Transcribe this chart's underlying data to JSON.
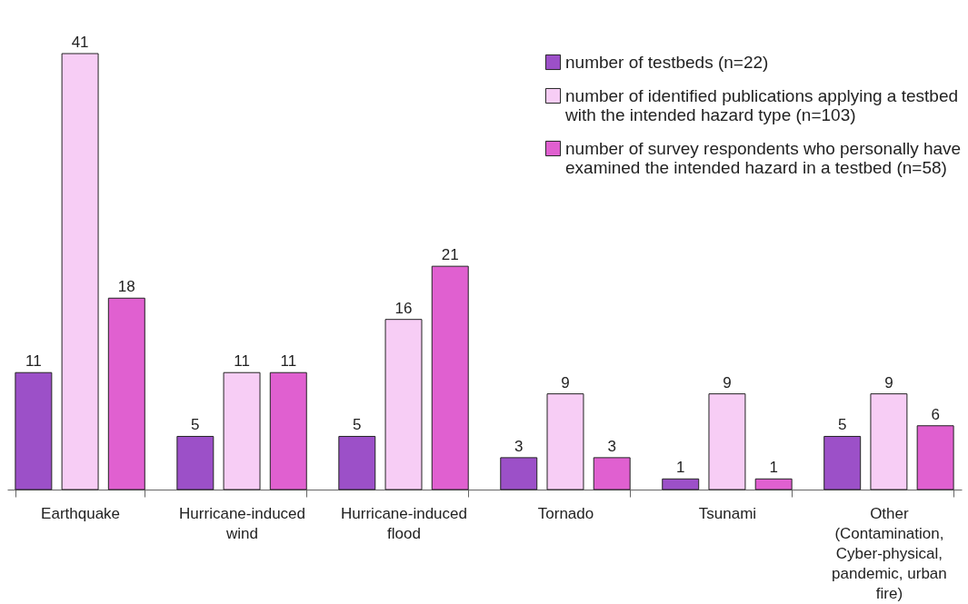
{
  "chart_data": {
    "type": "bar",
    "categories": [
      "Earthquake",
      "Hurricane-induced wind",
      "Hurricane-induced flood",
      "Tornado",
      "Tsunami",
      "Other (Contamination, Cyber-physical, pandemic, urban fire)"
    ],
    "series": [
      {
        "name": "number of testbeds (n=22)",
        "color": "#9c50c8",
        "values": [
          11,
          5,
          5,
          3,
          1,
          5
        ]
      },
      {
        "name": "number of identified publications applying a testbed with the intended hazard type (n=103)",
        "color": "#f7cdf5",
        "values": [
          41,
          11,
          16,
          9,
          9,
          9
        ]
      },
      {
        "name": "number of survey respondents who personally have examined the intended hazard in a testbed (n=58)",
        "color": "#e060d0",
        "values": [
          18,
          11,
          21,
          3,
          1,
          6
        ]
      }
    ],
    "data_labels": true,
    "legend": "top right"
  }
}
